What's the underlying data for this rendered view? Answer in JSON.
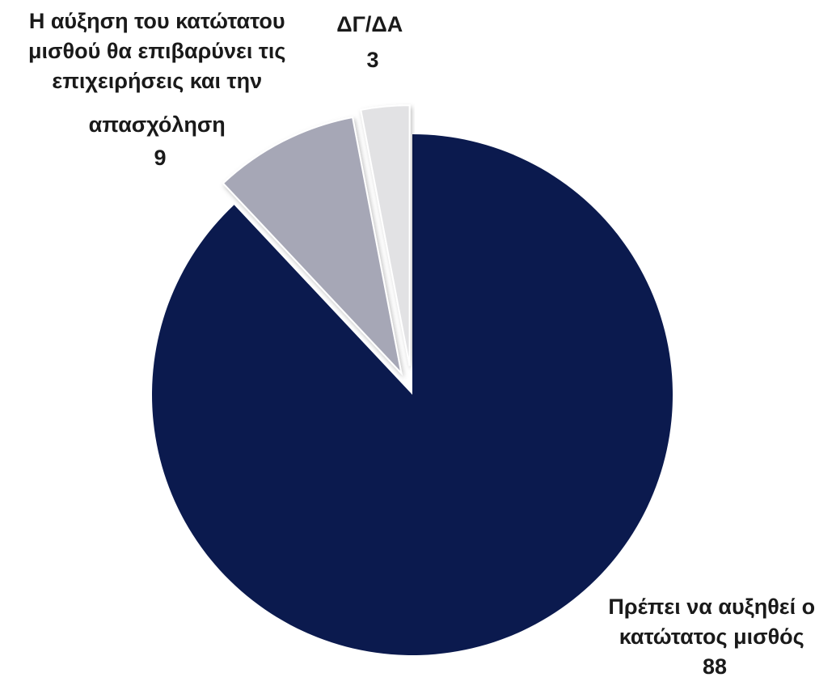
{
  "chart_data": {
    "type": "pie",
    "title": "",
    "slices": [
      {
        "label_lines": [
          "Πρέπει να αυξηθεί ο",
          "κατώτατος μισθός"
        ],
        "value_text": "88",
        "value": 88,
        "color": "#0b1a4e"
      },
      {
        "label_lines": [
          "Η αύξηση του κατώτατου",
          "μισθού θα επιβαρύνει τις",
          "επιχειρήσεις και την",
          "απασχόληση"
        ],
        "value_text": "9",
        "value": 9,
        "color": "#a6a7b6"
      },
      {
        "label_lines": [
          "ΔΓ/ΔΑ"
        ],
        "value_text": "3",
        "value": 3,
        "color": "#e2e2e4"
      }
    ]
  }
}
